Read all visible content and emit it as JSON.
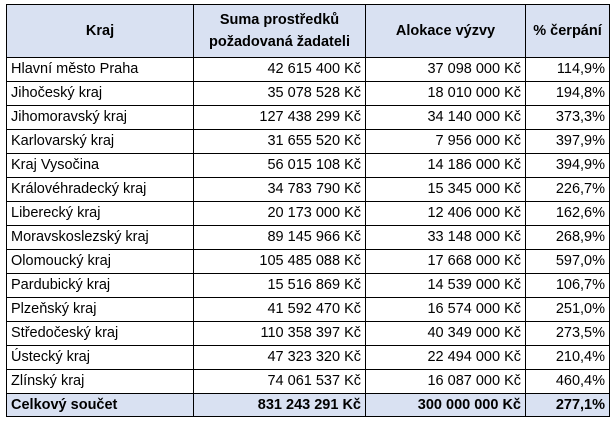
{
  "table": {
    "headers": {
      "kraj": "Kraj",
      "suma_line1": "Suma prostředků",
      "suma_line2": "požadovaná žadateli",
      "alokace": "Alokace výzvy",
      "cerpani": "% čerpání"
    },
    "rows": [
      {
        "kraj": "Hlavní město Praha",
        "suma": "42 615 400 Kč",
        "alokace": "37 098 000 Kč",
        "cerpani": "114,9%"
      },
      {
        "kraj": "Jihočeský kraj",
        "suma": "35 078 528 Kč",
        "alokace": "18 010 000 Kč",
        "cerpani": "194,8%"
      },
      {
        "kraj": "Jihomoravský kraj",
        "suma": "127 438 299 Kč",
        "alokace": "34 140 000 Kč",
        "cerpani": "373,3%"
      },
      {
        "kraj": "Karlovarský kraj",
        "suma": "31 655 520 Kč",
        "alokace": "7 956 000 Kč",
        "cerpani": "397,9%"
      },
      {
        "kraj": "Kraj Vysočina",
        "suma": "56 015 108 Kč",
        "alokace": "14 186 000 Kč",
        "cerpani": "394,9%"
      },
      {
        "kraj": "Královéhradecký kraj",
        "suma": "34 783 790 Kč",
        "alokace": "15 345 000 Kč",
        "cerpani": "226,7%"
      },
      {
        "kraj": "Liberecký kraj",
        "suma": "20 173 000 Kč",
        "alokace": "12 406 000 Kč",
        "cerpani": "162,6%"
      },
      {
        "kraj": "Moravskoslezský kraj",
        "suma": "89 145 966 Kč",
        "alokace": "33 148 000 Kč",
        "cerpani": "268,9%"
      },
      {
        "kraj": "Olomoucký kraj",
        "suma": "105 485 088 Kč",
        "alokace": "17 668 000 Kč",
        "cerpani": "597,0%"
      },
      {
        "kraj": "Pardubický kraj",
        "suma": "15 516 869 Kč",
        "alokace": "14 539 000 Kč",
        "cerpani": "106,7%"
      },
      {
        "kraj": "Plzeňský kraj",
        "suma": "41 592 470 Kč",
        "alokace": "16 574 000 Kč",
        "cerpani": "251,0%"
      },
      {
        "kraj": "Středočeský kraj",
        "suma": "110 358 397 Kč",
        "alokace": "40 349 000 Kč",
        "cerpani": "273,5%"
      },
      {
        "kraj": "Ústecký kraj",
        "suma": "47 323 320 Kč",
        "alokace": "22 494 000 Kč",
        "cerpani": "210,4%"
      },
      {
        "kraj": "Zlínský kraj",
        "suma": "74 061 537 Kč",
        "alokace": "16 087 000 Kč",
        "cerpani": "460,4%"
      }
    ],
    "total": {
      "kraj": "Celkový součet",
      "suma": "831 243 291 Kč",
      "alokace": "300 000 000 Kč",
      "cerpani": "277,1%"
    }
  }
}
